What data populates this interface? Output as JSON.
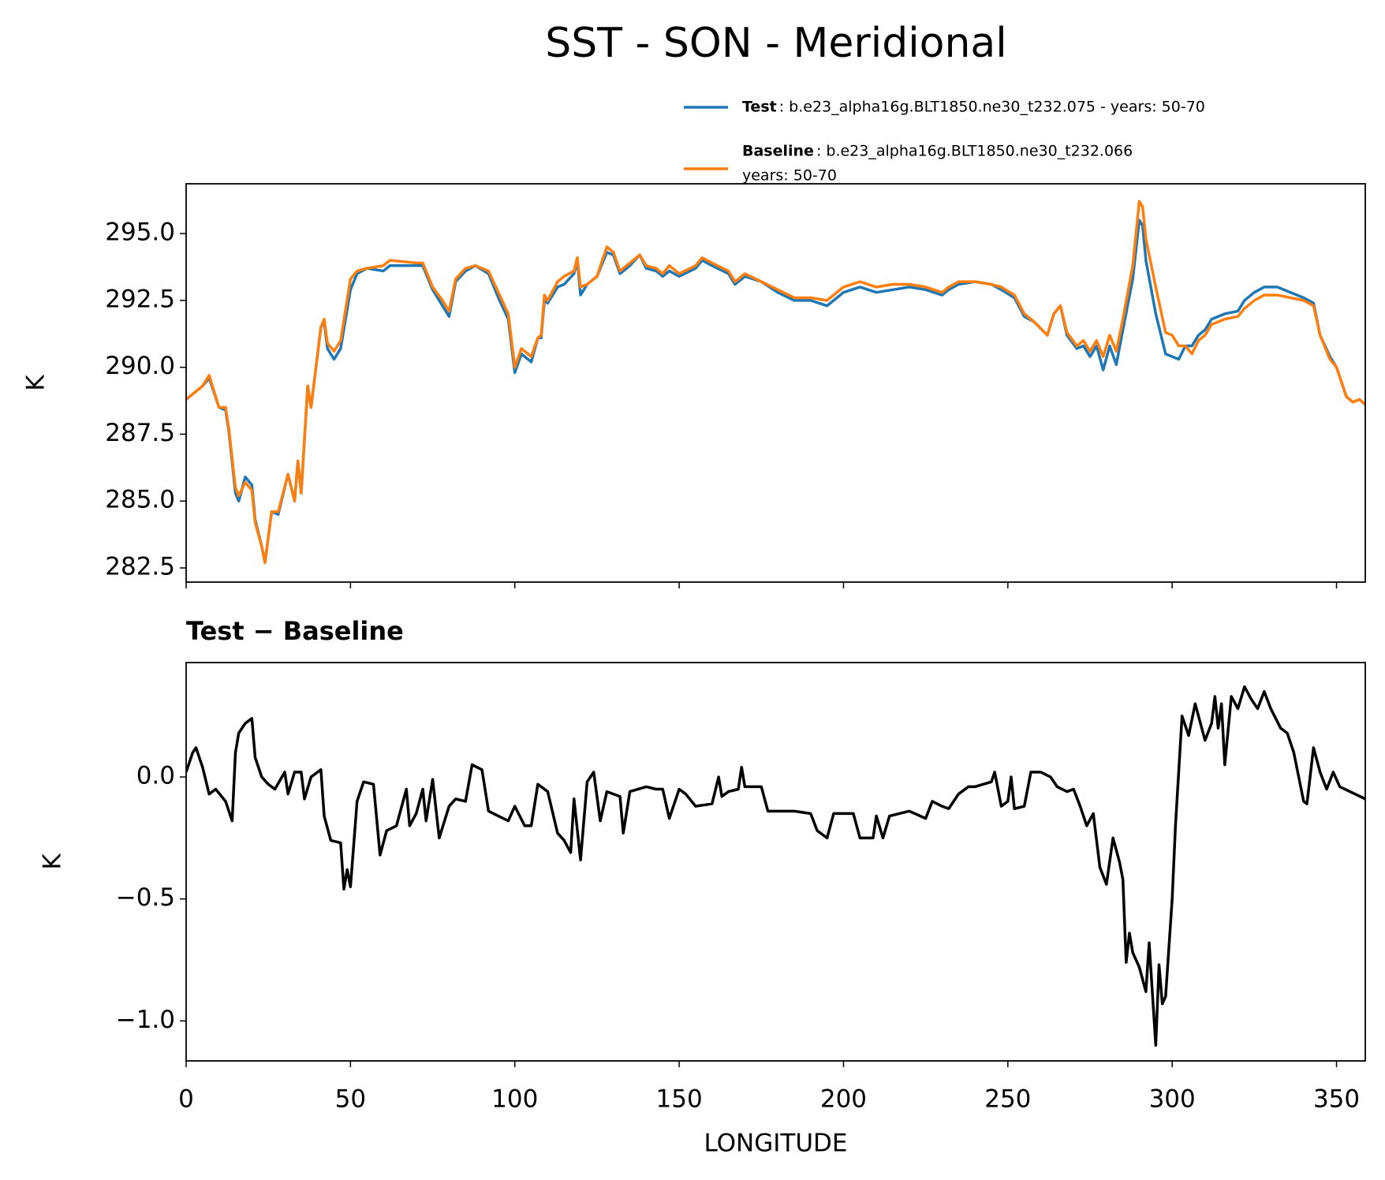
{
  "title": "SST - SON - Meridional",
  "chart_data": [
    {
      "type": "line",
      "ylabel": "K",
      "legend": "upper right",
      "xticklabels": false,
      "xlim": [
        0,
        358.75
      ],
      "ylim": [
        281.97,
        296.86
      ],
      "xticks": [
        0,
        50,
        100,
        150,
        200,
        250,
        300,
        350
      ],
      "yticks": [
        282.5,
        {
          "value": 285,
          "label": "285.0"
        },
        287.5,
        {
          "value": 290,
          "label": "290.0"
        },
        292.5,
        {
          "value": 295,
          "label": "295.0"
        }
      ],
      "x": [
        0,
        5,
        7,
        10,
        12,
        13,
        15,
        16,
        18,
        20,
        21,
        23,
        24,
        26,
        28,
        31,
        33,
        34,
        35,
        37,
        38,
        41,
        42,
        43,
        45,
        47,
        50,
        52,
        55,
        60,
        62,
        70,
        72,
        75,
        78,
        80,
        82,
        85,
        88,
        92,
        95,
        98,
        100,
        102,
        105,
        107,
        108,
        109,
        110,
        113,
        115,
        118,
        119,
        120,
        122,
        125,
        128,
        130,
        132,
        135,
        138,
        140,
        143,
        145,
        147,
        150,
        155,
        157,
        160,
        165,
        167,
        170,
        175,
        180,
        185,
        190,
        195,
        200,
        205,
        210,
        215,
        220,
        225,
        230,
        232,
        235,
        240,
        245,
        248,
        252,
        255,
        258,
        262,
        264,
        266,
        268,
        271,
        273,
        275,
        277,
        279,
        281,
        283,
        285,
        288,
        290,
        291,
        292,
        295,
        298,
        300,
        302,
        304,
        306,
        308,
        310,
        312,
        316,
        320,
        322,
        325,
        328,
        332,
        336,
        340,
        343,
        345,
        348,
        350,
        353,
        355,
        357,
        358.75
      ],
      "series": [
        {
          "name": "Test",
          "description": [
            ": b.e23_alpha16g.BLT1850.ne30_t232.075 - years: 50-70"
          ],
          "color": "#1f77b4",
          "values": [
            288.8,
            289.3,
            289.6,
            288.5,
            288.4,
            287.6,
            285.3,
            285.0,
            285.9,
            285.6,
            284.3,
            283.3,
            282.7,
            284.6,
            284.5,
            286.0,
            285.0,
            286.5,
            285.3,
            289.3,
            288.5,
            291.5,
            291.7,
            290.7,
            290.3,
            290.7,
            292.9,
            293.5,
            293.7,
            293.6,
            293.8,
            293.8,
            293.8,
            292.9,
            292.3,
            291.9,
            293.2,
            293.6,
            293.8,
            293.5,
            292.6,
            291.8,
            289.8,
            290.5,
            290.2,
            291.1,
            291.1,
            292.5,
            292.4,
            293.0,
            293.1,
            293.5,
            294.0,
            292.7,
            293.1,
            293.4,
            294.3,
            294.2,
            293.5,
            293.8,
            294.2,
            293.7,
            293.6,
            293.4,
            293.6,
            293.4,
            293.7,
            294.0,
            293.8,
            293.5,
            293.1,
            293.4,
            293.2,
            292.8,
            292.5,
            292.5,
            292.3,
            292.8,
            293.0,
            292.8,
            292.9,
            293.0,
            292.9,
            292.7,
            292.9,
            293.1,
            293.2,
            293.1,
            292.9,
            292.6,
            291.9,
            291.7,
            291.2,
            292.0,
            292.3,
            291.2,
            290.7,
            290.8,
            290.4,
            290.8,
            289.9,
            290.8,
            290.1,
            291.4,
            293.3,
            295.5,
            295.3,
            294.0,
            292.0,
            290.5,
            290.4,
            290.3,
            290.8,
            290.8,
            291.2,
            291.4,
            291.8,
            292.0,
            292.1,
            292.5,
            292.8,
            293.0,
            293.0,
            292.8,
            292.6,
            292.4,
            291.2,
            290.4,
            290.0,
            288.9,
            288.7,
            288.8,
            288.6
          ]
        },
        {
          "name": "Baseline",
          "description": [
            ": b.e23_alpha16g.BLT1850.ne30_t232.066",
            "years: 50-70"
          ],
          "color": "#ff7f0e",
          "values": [
            288.8,
            289.3,
            289.7,
            288.5,
            288.5,
            287.7,
            285.5,
            285.2,
            285.7,
            285.4,
            284.2,
            283.3,
            282.7,
            284.6,
            284.6,
            286.0,
            285.0,
            286.5,
            285.3,
            289.3,
            288.5,
            291.5,
            291.8,
            290.9,
            290.6,
            291.0,
            293.3,
            293.6,
            293.7,
            293.8,
            294.0,
            293.9,
            293.9,
            293.0,
            292.5,
            292.1,
            293.3,
            293.7,
            293.8,
            293.6,
            292.8,
            292.0,
            290.0,
            290.7,
            290.4,
            291.1,
            291.2,
            292.7,
            292.5,
            293.2,
            293.4,
            293.6,
            294.1,
            293.0,
            293.1,
            293.4,
            294.5,
            294.3,
            293.6,
            293.9,
            294.2,
            293.8,
            293.7,
            293.5,
            293.8,
            293.5,
            293.8,
            294.1,
            293.9,
            293.6,
            293.2,
            293.5,
            293.2,
            292.9,
            292.6,
            292.6,
            292.5,
            293.0,
            293.2,
            293.0,
            293.1,
            293.1,
            293.0,
            292.8,
            293.0,
            293.2,
            293.2,
            293.1,
            293.0,
            292.7,
            292.0,
            291.7,
            291.2,
            292.0,
            292.3,
            291.3,
            290.8,
            291.0,
            290.6,
            291.0,
            290.4,
            291.2,
            290.6,
            291.8,
            293.8,
            296.2,
            296.0,
            294.8,
            293.0,
            291.3,
            291.2,
            290.8,
            290.8,
            290.5,
            291.0,
            291.2,
            291.6,
            291.8,
            291.9,
            292.2,
            292.5,
            292.7,
            292.7,
            292.6,
            292.5,
            292.3,
            291.2,
            290.3,
            290.0,
            288.9,
            288.7,
            288.8,
            288.6
          ]
        }
      ]
    },
    {
      "type": "line",
      "title": "Test − Baseline",
      "xlabel": "LONGITUDE",
      "ylabel": "K",
      "xticklabels": true,
      "color": "#000000",
      "xlim": [
        0,
        358.75
      ],
      "ylim": [
        -1.164,
        0.469
      ],
      "xticks": [
        0,
        50,
        100,
        150,
        200,
        250,
        300,
        350
      ],
      "yticks": [
        {
          "value": -1,
          "label": "−1.0"
        },
        {
          "value": -0.5,
          "label": "−0.5"
        },
        {
          "value": 0,
          "label": "0.0"
        }
      ],
      "x": [
        0,
        2,
        3,
        5,
        7,
        9,
        12,
        14,
        15,
        16,
        18,
        20,
        21,
        23,
        25,
        27,
        30,
        31,
        33,
        35,
        36,
        38,
        41,
        42,
        44,
        47,
        48,
        49,
        50,
        52,
        54,
        57,
        59,
        61,
        64,
        67,
        68,
        70,
        72,
        73,
        75,
        77,
        80,
        82,
        85,
        87,
        90,
        92,
        95,
        98,
        100,
        103,
        105,
        107,
        110,
        113,
        115,
        117,
        118,
        120,
        122,
        124,
        126,
        128,
        132,
        133,
        135,
        140,
        143,
        145,
        147,
        150,
        152,
        155,
        160,
        162,
        163,
        165,
        168,
        169,
        170,
        175,
        177,
        180,
        185,
        190,
        192,
        195,
        197,
        200,
        203,
        205,
        209,
        210,
        212,
        214,
        217,
        220,
        225,
        227,
        230,
        232,
        235,
        238,
        240,
        245,
        246,
        248,
        250,
        251,
        252,
        255,
        257,
        260,
        263,
        265,
        268,
        270,
        272,
        274,
        276,
        278,
        280,
        282,
        284,
        285,
        286,
        287,
        288,
        290,
        292,
        293,
        295,
        296,
        297,
        298,
        300,
        301,
        303,
        305,
        307,
        308,
        310,
        312,
        313,
        314,
        315,
        316,
        318,
        320,
        322,
        324,
        326,
        328,
        330,
        333,
        335,
        337,
        340,
        341,
        343,
        345,
        347,
        349,
        351,
        358.75
      ],
      "values": [
        0.02,
        0.1,
        0.12,
        0.04,
        -0.07,
        -0.05,
        -0.1,
        -0.18,
        0.1,
        0.18,
        0.22,
        0.24,
        0.08,
        0.0,
        -0.03,
        -0.05,
        0.02,
        -0.07,
        0.02,
        0.02,
        -0.09,
        0.0,
        0.03,
        -0.16,
        -0.26,
        -0.27,
        -0.46,
        -0.38,
        -0.45,
        -0.1,
        -0.02,
        -0.03,
        -0.32,
        -0.22,
        -0.2,
        -0.05,
        -0.2,
        -0.15,
        -0.05,
        -0.18,
        -0.01,
        -0.25,
        -0.12,
        -0.09,
        -0.1,
        0.05,
        0.03,
        -0.14,
        -0.16,
        -0.18,
        -0.12,
        -0.2,
        -0.2,
        -0.03,
        -0.06,
        -0.23,
        -0.26,
        -0.31,
        -0.09,
        -0.34,
        -0.02,
        0.02,
        -0.18,
        -0.06,
        -0.08,
        -0.23,
        -0.06,
        -0.04,
        -0.05,
        -0.05,
        -0.17,
        -0.05,
        -0.07,
        -0.12,
        -0.11,
        0.0,
        -0.08,
        -0.06,
        -0.05,
        0.04,
        -0.04,
        -0.04,
        -0.14,
        -0.14,
        -0.14,
        -0.15,
        -0.22,
        -0.25,
        -0.15,
        -0.15,
        -0.15,
        -0.25,
        -0.25,
        -0.16,
        -0.25,
        -0.16,
        -0.15,
        -0.14,
        -0.17,
        -0.1,
        -0.12,
        -0.13,
        -0.07,
        -0.04,
        -0.04,
        -0.02,
        0.02,
        -0.12,
        -0.1,
        0.0,
        -0.13,
        -0.12,
        0.02,
        0.02,
        0.0,
        -0.04,
        -0.06,
        -0.05,
        -0.12,
        -0.2,
        -0.15,
        -0.37,
        -0.44,
        -0.25,
        -0.35,
        -0.42,
        -0.76,
        -0.64,
        -0.72,
        -0.78,
        -0.88,
        -0.68,
        -1.1,
        -0.77,
        -0.93,
        -0.9,
        -0.5,
        -0.2,
        0.25,
        0.17,
        0.3,
        0.25,
        0.15,
        0.22,
        0.33,
        0.2,
        0.3,
        0.05,
        0.33,
        0.28,
        0.37,
        0.32,
        0.28,
        0.35,
        0.28,
        0.2,
        0.18,
        0.1,
        -0.1,
        -0.11,
        0.12,
        0.02,
        -0.05,
        0.02,
        -0.04,
        -0.09
      ]
    }
  ]
}
